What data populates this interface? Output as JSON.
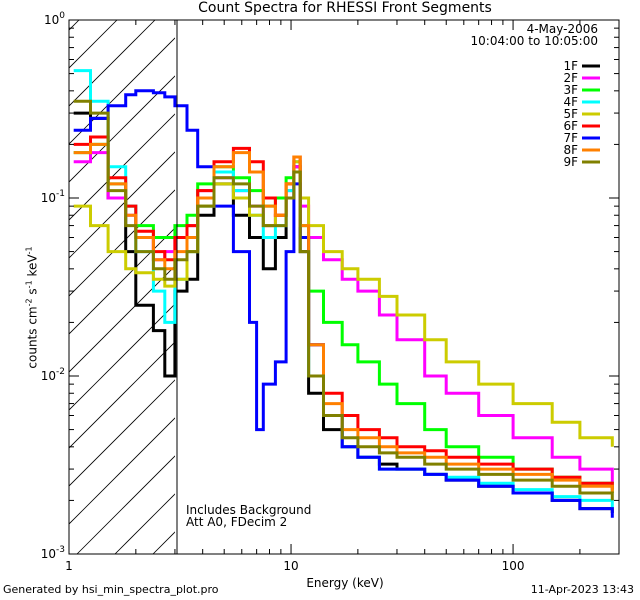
{
  "title": "Count Spectra for RHESSI Front Segments",
  "footer": {
    "generated": "Generated by hsi_min_spectra_plot.pro",
    "timestamp": "11-Apr-2023 13:43"
  },
  "chart_data": {
    "type": "line",
    "title": "Count Spectra for RHESSI Front Segments",
    "xlabel": "Energy (keV)",
    "ylabel": "counts cm-2 s-1 keV-1",
    "xscale": "log",
    "yscale": "log",
    "xlim": [
      1,
      300
    ],
    "ylim": [
      0.001,
      1
    ],
    "x_ticks": [
      "1",
      "10",
      "100"
    ],
    "y_ticks": [
      "10^-3",
      "10^-2",
      "10^-1",
      "10^0"
    ],
    "shaded_region": {
      "from": 1,
      "to": 3,
      "style": "diagonal-hatch"
    },
    "legend_position": "top-right",
    "legend_header": [
      "4-May-2006",
      "10:04:00 to 10:05:00"
    ],
    "annotations": [
      "Includes Background",
      "Att A0, FDecim 2"
    ],
    "series": [
      {
        "name": "1F",
        "color": "#000000",
        "points": [
          [
            1.05,
            0.3
          ],
          [
            1.25,
            0.28
          ],
          [
            1.5,
            0.1
          ],
          [
            1.8,
            0.05
          ],
          [
            2.0,
            0.025
          ],
          [
            2.4,
            0.018
          ],
          [
            2.7,
            0.01
          ],
          [
            3.0,
            0.03
          ],
          [
            3.4,
            0.035
          ],
          [
            3.8,
            0.08
          ],
          [
            4.5,
            0.12
          ],
          [
            5.5,
            0.08
          ],
          [
            6.5,
            0.06
          ],
          [
            7.5,
            0.04
          ],
          [
            8.5,
            0.06
          ],
          [
            9.5,
            0.1
          ],
          [
            10.3,
            0.15
          ],
          [
            11.0,
            0.05
          ],
          [
            12.0,
            0.008
          ],
          [
            14,
            0.005
          ],
          [
            17,
            0.004
          ],
          [
            20,
            0.0035
          ],
          [
            25,
            0.0032
          ],
          [
            30,
            0.003
          ],
          [
            40,
            0.0028
          ],
          [
            50,
            0.0026
          ],
          [
            70,
            0.0024
          ],
          [
            100,
            0.0022
          ],
          [
            150,
            0.002
          ],
          [
            200,
            0.0018
          ],
          [
            280,
            0.0017
          ]
        ]
      },
      {
        "name": "2F",
        "color": "#ff00ff",
        "points": [
          [
            1.05,
            0.16
          ],
          [
            1.25,
            0.18
          ],
          [
            1.5,
            0.1
          ],
          [
            1.8,
            0.08
          ],
          [
            2.0,
            0.06
          ],
          [
            2.4,
            0.045
          ],
          [
            2.7,
            0.05
          ],
          [
            3.0,
            0.06
          ],
          [
            3.4,
            0.07
          ],
          [
            3.8,
            0.11
          ],
          [
            4.5,
            0.13
          ],
          [
            5.5,
            0.11
          ],
          [
            6.5,
            0.09
          ],
          [
            7.5,
            0.07
          ],
          [
            8.5,
            0.08
          ],
          [
            9.5,
            0.11
          ],
          [
            10.3,
            0.15
          ],
          [
            11.0,
            0.09
          ],
          [
            12.0,
            0.06
          ],
          [
            14,
            0.045
          ],
          [
            17,
            0.035
          ],
          [
            20,
            0.03
          ],
          [
            25,
            0.022
          ],
          [
            30,
            0.016
          ],
          [
            40,
            0.01
          ],
          [
            50,
            0.008
          ],
          [
            70,
            0.006
          ],
          [
            100,
            0.0045
          ],
          [
            150,
            0.0035
          ],
          [
            200,
            0.003
          ],
          [
            280,
            0.0025
          ]
        ]
      },
      {
        "name": "3F",
        "color": "#00ff00",
        "points": [
          [
            1.05,
            0.18
          ],
          [
            1.25,
            0.2
          ],
          [
            1.5,
            0.12
          ],
          [
            1.8,
            0.09
          ],
          [
            2.0,
            0.07
          ],
          [
            2.4,
            0.06
          ],
          [
            2.7,
            0.06
          ],
          [
            3.0,
            0.07
          ],
          [
            3.4,
            0.08
          ],
          [
            3.8,
            0.12
          ],
          [
            4.5,
            0.15
          ],
          [
            5.5,
            0.13
          ],
          [
            6.5,
            0.11
          ],
          [
            7.5,
            0.09
          ],
          [
            8.5,
            0.1
          ],
          [
            9.5,
            0.13
          ],
          [
            10.3,
            0.14
          ],
          [
            11.0,
            0.07
          ],
          [
            12.0,
            0.03
          ],
          [
            14,
            0.02
          ],
          [
            17,
            0.015
          ],
          [
            20,
            0.012
          ],
          [
            25,
            0.009
          ],
          [
            30,
            0.007
          ],
          [
            40,
            0.005
          ],
          [
            50,
            0.004
          ],
          [
            70,
            0.0035
          ],
          [
            100,
            0.003
          ],
          [
            150,
            0.0027
          ],
          [
            200,
            0.0025
          ],
          [
            280,
            0.0022
          ]
        ]
      },
      {
        "name": "4F",
        "color": "#00ffff",
        "points": [
          [
            1.05,
            0.52
          ],
          [
            1.25,
            0.35
          ],
          [
            1.5,
            0.15
          ],
          [
            1.8,
            0.09
          ],
          [
            2.0,
            0.05
          ],
          [
            2.4,
            0.03
          ],
          [
            2.7,
            0.02
          ],
          [
            3.0,
            0.035
          ],
          [
            3.4,
            0.05
          ],
          [
            3.8,
            0.09
          ],
          [
            4.5,
            0.14
          ],
          [
            5.5,
            0.11
          ],
          [
            6.5,
            0.08
          ],
          [
            7.5,
            0.06
          ],
          [
            8.5,
            0.07
          ],
          [
            9.5,
            0.11
          ],
          [
            10.3,
            0.16
          ],
          [
            11.0,
            0.06
          ],
          [
            12.0,
            0.01
          ],
          [
            14,
            0.006
          ],
          [
            17,
            0.004
          ],
          [
            20,
            0.0035
          ],
          [
            25,
            0.003
          ],
          [
            30,
            0.003
          ],
          [
            40,
            0.0028
          ],
          [
            50,
            0.0027
          ],
          [
            70,
            0.0025
          ],
          [
            100,
            0.0023
          ],
          [
            150,
            0.0021
          ],
          [
            200,
            0.002
          ],
          [
            280,
            0.0018
          ]
        ]
      },
      {
        "name": "5F",
        "color": "#cccc00",
        "points": [
          [
            1.05,
            0.09
          ],
          [
            1.25,
            0.07
          ],
          [
            1.5,
            0.05
          ],
          [
            1.8,
            0.04
          ],
          [
            2.0,
            0.038
          ],
          [
            2.4,
            0.035
          ],
          [
            2.7,
            0.032
          ],
          [
            3.0,
            0.035
          ],
          [
            3.4,
            0.05
          ],
          [
            3.8,
            0.09
          ],
          [
            4.5,
            0.12
          ],
          [
            5.5,
            0.1
          ],
          [
            6.5,
            0.08
          ],
          [
            7.5,
            0.07
          ],
          [
            8.5,
            0.08
          ],
          [
            9.5,
            0.12
          ],
          [
            10.3,
            0.16
          ],
          [
            11.0,
            0.1
          ],
          [
            12.0,
            0.07
          ],
          [
            14,
            0.05
          ],
          [
            17,
            0.04
          ],
          [
            20,
            0.035
          ],
          [
            25,
            0.028
          ],
          [
            30,
            0.022
          ],
          [
            40,
            0.016
          ],
          [
            50,
            0.012
          ],
          [
            70,
            0.009
          ],
          [
            100,
            0.007
          ],
          [
            150,
            0.0055
          ],
          [
            200,
            0.0045
          ],
          [
            280,
            0.004
          ]
        ]
      },
      {
        "name": "6F",
        "color": "#ff0000",
        "points": [
          [
            1.05,
            0.2
          ],
          [
            1.25,
            0.22
          ],
          [
            1.5,
            0.13
          ],
          [
            1.8,
            0.09
          ],
          [
            2.0,
            0.065
          ],
          [
            2.4,
            0.05
          ],
          [
            2.7,
            0.045
          ],
          [
            3.0,
            0.06
          ],
          [
            3.4,
            0.07
          ],
          [
            3.8,
            0.11
          ],
          [
            4.5,
            0.16
          ],
          [
            5.5,
            0.19
          ],
          [
            6.5,
            0.16
          ],
          [
            7.5,
            0.1
          ],
          [
            8.5,
            0.08
          ],
          [
            9.5,
            0.12
          ],
          [
            10.3,
            0.17
          ],
          [
            11.0,
            0.06
          ],
          [
            12.0,
            0.015
          ],
          [
            14,
            0.008
          ],
          [
            17,
            0.006
          ],
          [
            20,
            0.005
          ],
          [
            25,
            0.0045
          ],
          [
            30,
            0.004
          ],
          [
            40,
            0.0038
          ],
          [
            50,
            0.0035
          ],
          [
            70,
            0.0032
          ],
          [
            100,
            0.003
          ],
          [
            150,
            0.0027
          ],
          [
            200,
            0.0025
          ],
          [
            280,
            0.0023
          ]
        ]
      },
      {
        "name": "7F",
        "color": "#0000ff",
        "points": [
          [
            1.05,
            0.24
          ],
          [
            1.25,
            0.28
          ],
          [
            1.5,
            0.33
          ],
          [
            1.8,
            0.38
          ],
          [
            2.0,
            0.4
          ],
          [
            2.4,
            0.39
          ],
          [
            2.7,
            0.37
          ],
          [
            3.0,
            0.33
          ],
          [
            3.4,
            0.24
          ],
          [
            3.8,
            0.15
          ],
          [
            4.5,
            0.09
          ],
          [
            5.5,
            0.05
          ],
          [
            6.5,
            0.02
          ],
          [
            7.0,
            0.005
          ],
          [
            7.5,
            0.009
          ],
          [
            8.5,
            0.012
          ],
          [
            9.5,
            0.05
          ],
          [
            10.3,
            0.12
          ],
          [
            11.0,
            0.06
          ],
          [
            12.0,
            0.015
          ],
          [
            14,
            0.006
          ],
          [
            17,
            0.004
          ],
          [
            20,
            0.0035
          ],
          [
            25,
            0.003
          ],
          [
            30,
            0.003
          ],
          [
            40,
            0.0028
          ],
          [
            50,
            0.0026
          ],
          [
            70,
            0.0024
          ],
          [
            100,
            0.0022
          ],
          [
            150,
            0.002
          ],
          [
            200,
            0.0018
          ],
          [
            280,
            0.0016
          ]
        ]
      },
      {
        "name": "8F",
        "color": "#ff8000",
        "points": [
          [
            1.05,
            0.18
          ],
          [
            1.25,
            0.2
          ],
          [
            1.5,
            0.12
          ],
          [
            1.8,
            0.08
          ],
          [
            2.0,
            0.06
          ],
          [
            2.4,
            0.045
          ],
          [
            2.7,
            0.04
          ],
          [
            3.0,
            0.05
          ],
          [
            3.4,
            0.06
          ],
          [
            3.8,
            0.1
          ],
          [
            4.5,
            0.15
          ],
          [
            5.5,
            0.18
          ],
          [
            6.5,
            0.14
          ],
          [
            7.5,
            0.09
          ],
          [
            8.5,
            0.08
          ],
          [
            9.5,
            0.12
          ],
          [
            10.3,
            0.17
          ],
          [
            11.0,
            0.07
          ],
          [
            12.0,
            0.015
          ],
          [
            14,
            0.007
          ],
          [
            17,
            0.005
          ],
          [
            20,
            0.0045
          ],
          [
            25,
            0.004
          ],
          [
            30,
            0.0037
          ],
          [
            40,
            0.0035
          ],
          [
            50,
            0.0032
          ],
          [
            70,
            0.003
          ],
          [
            100,
            0.0028
          ],
          [
            150,
            0.0026
          ],
          [
            200,
            0.0024
          ],
          [
            280,
            0.0022
          ]
        ]
      },
      {
        "name": "9F",
        "color": "#808000",
        "points": [
          [
            1.05,
            0.35
          ],
          [
            1.25,
            0.3
          ],
          [
            1.5,
            0.11
          ],
          [
            1.8,
            0.07
          ],
          [
            2.0,
            0.05
          ],
          [
            2.4,
            0.04
          ],
          [
            2.7,
            0.035
          ],
          [
            3.0,
            0.045
          ],
          [
            3.4,
            0.05
          ],
          [
            3.8,
            0.09
          ],
          [
            4.5,
            0.13
          ],
          [
            5.5,
            0.12
          ],
          [
            6.5,
            0.09
          ],
          [
            7.5,
            0.07
          ],
          [
            8.5,
            0.07
          ],
          [
            9.5,
            0.1
          ],
          [
            10.3,
            0.14
          ],
          [
            11.0,
            0.05
          ],
          [
            12.0,
            0.01
          ],
          [
            14,
            0.006
          ],
          [
            17,
            0.0045
          ],
          [
            20,
            0.004
          ],
          [
            25,
            0.0037
          ],
          [
            30,
            0.0035
          ],
          [
            40,
            0.0032
          ],
          [
            50,
            0.003
          ],
          [
            70,
            0.0028
          ],
          [
            100,
            0.0026
          ],
          [
            150,
            0.0024
          ],
          [
            200,
            0.0022
          ],
          [
            280,
            0.002
          ]
        ]
      }
    ]
  }
}
